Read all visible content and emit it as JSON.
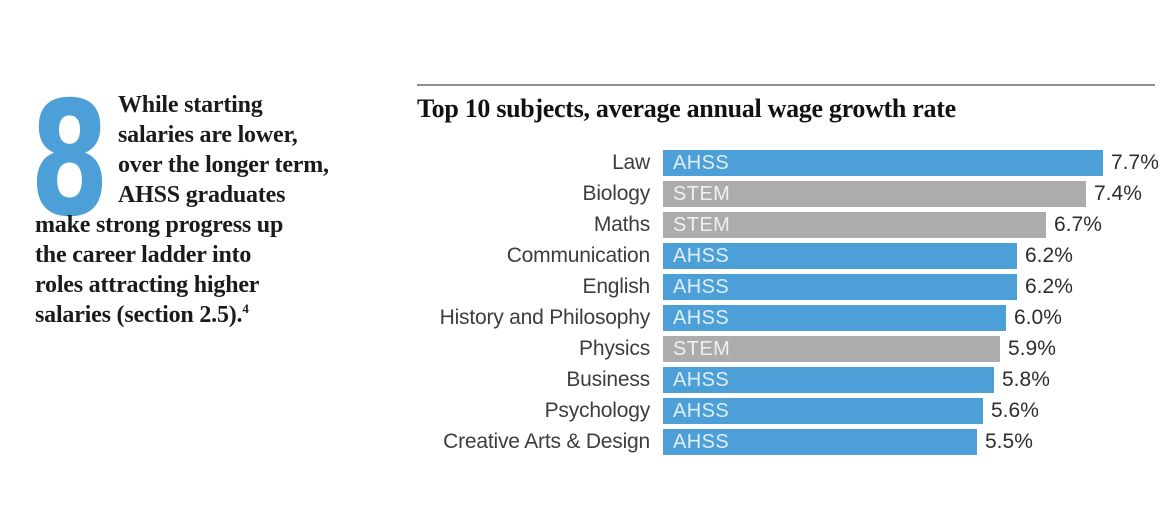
{
  "intro": {
    "number": "8",
    "lines": [
      "While starting",
      "salaries are lower,",
      "over the longer term,",
      "AHSS graduates",
      "make strong progress up",
      "the career ladder into",
      "roles attracting higher",
      "salaries (section 2.5)."
    ],
    "footnote_marker": "4"
  },
  "colors": {
    "AHSS": "#4D9FD7",
    "STEM": "#ACACAC",
    "number_blue": "#4D9FD7"
  },
  "chart_data": {
    "type": "bar",
    "orientation": "horizontal",
    "title": "Top 10 subjects, average annual wage growth rate",
    "value_unit": "%",
    "xlim": [
      0,
      7.7
    ],
    "grid": false,
    "legend_position": "none (group tags shown inside bars)",
    "rows": [
      {
        "category": "Law",
        "group": "AHSS",
        "value": 7.7,
        "display": "7.7%"
      },
      {
        "category": "Biology",
        "group": "STEM",
        "value": 7.4,
        "display": "7.4%"
      },
      {
        "category": "Maths",
        "group": "STEM",
        "value": 6.7,
        "display": "6.7%"
      },
      {
        "category": "Communication",
        "group": "AHSS",
        "value": 6.2,
        "display": "6.2%"
      },
      {
        "category": "English",
        "group": "AHSS",
        "value": 6.2,
        "display": "6.2%"
      },
      {
        "category": "History and Philosophy",
        "group": "AHSS",
        "value": 6.0,
        "display": "6.0%"
      },
      {
        "category": "Physics",
        "group": "STEM",
        "value": 5.9,
        "display": "5.9%"
      },
      {
        "category": "Business",
        "group": "AHSS",
        "value": 5.8,
        "display": "5.8%"
      },
      {
        "category": "Psychology",
        "group": "AHSS",
        "value": 5.6,
        "display": "5.6%"
      },
      {
        "category": "Creative Arts & Design",
        "group": "AHSS",
        "value": 5.5,
        "display": "5.5%"
      }
    ]
  }
}
